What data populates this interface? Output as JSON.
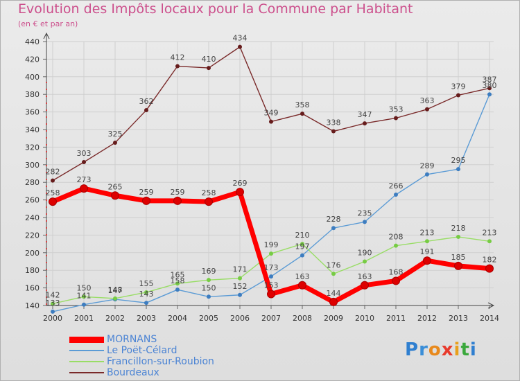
{
  "chart_data": {
    "type": "line",
    "title": "Evolution des Impôts locaux pour la Commune par Habitant",
    "subtitle": "(en € et par an)",
    "xlabel": "",
    "ylabel": "",
    "ylim": [
      140,
      440
    ],
    "ytick_step": 20,
    "grid": true,
    "categories": [
      "2000",
      "2001",
      "2002",
      "2003",
      "2004",
      "2005",
      "2006",
      "2007",
      "2008",
      "2009",
      "2010",
      "2011",
      "2012",
      "2013",
      "2014"
    ],
    "series": [
      {
        "name": "MORNANS",
        "color": "#ff0000",
        "point_color": "#dd0000",
        "width": 7,
        "values": [
          258,
          273,
          265,
          259,
          259,
          258,
          269,
          153,
          163,
          144,
          163,
          168,
          191,
          185,
          182
        ]
      },
      {
        "name": "Le Poët-Célard",
        "color": "#5b9bd5",
        "point_color": "#3d7dc0",
        "width": 1.4,
        "values": [
          133,
          141,
          147,
          143,
          158,
          150,
          152,
          173,
          197,
          228,
          235,
          266,
          289,
          295,
          380
        ]
      },
      {
        "name": "Francillon-sur-Roubion",
        "color": "#99dd66",
        "point_color": "#77cc44",
        "width": 1.4,
        "values": [
          142,
          150,
          148,
          155,
          165,
          169,
          171,
          199,
          210,
          176,
          190,
          208,
          213,
          218,
          213
        ]
      },
      {
        "name": "Bourdeaux",
        "color": "#7a2a2a",
        "point_color": "#661c1c",
        "width": 1.4,
        "values": [
          282,
          303,
          325,
          362,
          412,
          410,
          434,
          349,
          358,
          338,
          347,
          353,
          363,
          379,
          387
        ]
      }
    ],
    "legend_position": "bottom-left"
  },
  "logo": {
    "letters": [
      "P",
      "r",
      "o",
      "x",
      "i",
      "t",
      "i"
    ],
    "colors": [
      "#2f7fd0",
      "#3a8ed8",
      "#e8891c",
      "#e83a2c",
      "#e8a01c",
      "#3aa83c",
      "#2f7fd0"
    ]
  }
}
